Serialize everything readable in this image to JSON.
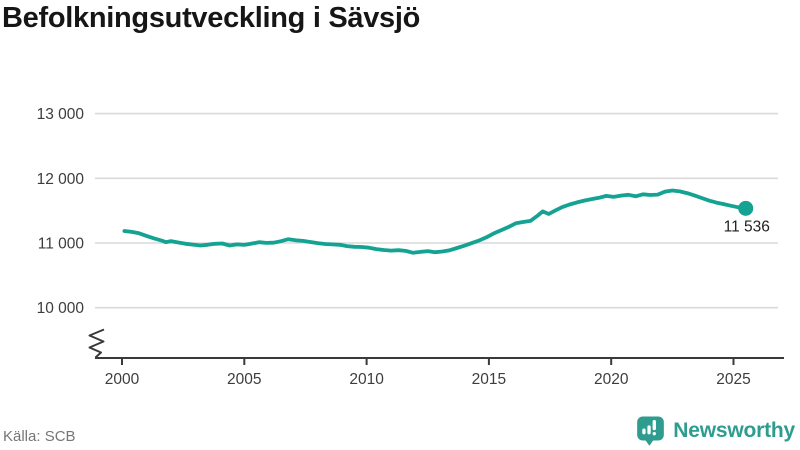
{
  "title": "Befolkningsutveckling i Sävsjö",
  "source": "Källa: SCB",
  "brand": {
    "name": "Newsworthy",
    "icon": "newsworthy-speech-bubble-bars-icon"
  },
  "colors": {
    "line": "#14a292",
    "logo": "#2e9c8e",
    "grid": "#d9d9d9",
    "axis": "#3a3a3a",
    "tick_text": "#3d3d3d",
    "title_text": "#161616",
    "muted_text": "#767676"
  },
  "annotation": {
    "label": "11 536",
    "year": 2025.5,
    "value": 11536
  },
  "chart_data": {
    "type": "line",
    "title": "Befolkningsutveckling i Sävsjö",
    "xlabel": "",
    "ylabel": "",
    "x_ticks": [
      2000,
      2005,
      2010,
      2015,
      2020,
      2025
    ],
    "y_ticks": [
      10000,
      11000,
      12000,
      13000
    ],
    "y_tick_labels": [
      "10 000",
      "11 000",
      "12 000",
      "13 000"
    ],
    "xlim": [
      1998.9,
      2027.1
    ],
    "ylim": [
      9200,
      13450
    ],
    "grid": "horizontal",
    "legend": false,
    "axis_break_bottom_left": true,
    "end_point_marker": true,
    "end_point_label": "11 536",
    "series": [
      {
        "name": "Befolkning",
        "points": [
          [
            2000.1,
            11185
          ],
          [
            2000.4,
            11172
          ],
          [
            2000.7,
            11150
          ],
          [
            2001.0,
            11110
          ],
          [
            2001.3,
            11072
          ],
          [
            2001.6,
            11040
          ],
          [
            2001.8,
            11012
          ],
          [
            2002.0,
            11030
          ],
          [
            2002.3,
            11008
          ],
          [
            2002.6,
            10988
          ],
          [
            2002.9,
            10975
          ],
          [
            2003.2,
            10962
          ],
          [
            2003.5,
            10972
          ],
          [
            2003.8,
            10988
          ],
          [
            2004.1,
            10992
          ],
          [
            2004.4,
            10962
          ],
          [
            2004.7,
            10978
          ],
          [
            2005.0,
            10970
          ],
          [
            2005.3,
            10990
          ],
          [
            2005.6,
            11012
          ],
          [
            2005.9,
            11002
          ],
          [
            2006.2,
            11005
          ],
          [
            2006.5,
            11028
          ],
          [
            2006.8,
            11058
          ],
          [
            2007.1,
            11042
          ],
          [
            2007.4,
            11032
          ],
          [
            2007.7,
            11015
          ],
          [
            2008.0,
            10998
          ],
          [
            2008.3,
            10985
          ],
          [
            2008.6,
            10978
          ],
          [
            2008.9,
            10972
          ],
          [
            2009.2,
            10952
          ],
          [
            2009.5,
            10942
          ],
          [
            2009.8,
            10938
          ],
          [
            2010.1,
            10928
          ],
          [
            2010.4,
            10905
          ],
          [
            2010.7,
            10892
          ],
          [
            2011.0,
            10882
          ],
          [
            2011.3,
            10888
          ],
          [
            2011.6,
            10878
          ],
          [
            2011.9,
            10848
          ],
          [
            2012.2,
            10862
          ],
          [
            2012.5,
            10875
          ],
          [
            2012.8,
            10858
          ],
          [
            2013.1,
            10868
          ],
          [
            2013.4,
            10888
          ],
          [
            2013.7,
            10922
          ],
          [
            2014.0,
            10958
          ],
          [
            2014.3,
            10998
          ],
          [
            2014.6,
            11038
          ],
          [
            2014.9,
            11088
          ],
          [
            2015.2,
            11148
          ],
          [
            2015.5,
            11198
          ],
          [
            2015.8,
            11248
          ],
          [
            2016.1,
            11305
          ],
          [
            2016.4,
            11325
          ],
          [
            2016.7,
            11342
          ],
          [
            2017.0,
            11425
          ],
          [
            2017.2,
            11488
          ],
          [
            2017.45,
            11448
          ],
          [
            2017.7,
            11500
          ],
          [
            2018.0,
            11555
          ],
          [
            2018.3,
            11595
          ],
          [
            2018.6,
            11628
          ],
          [
            2018.9,
            11655
          ],
          [
            2019.2,
            11678
          ],
          [
            2019.5,
            11698
          ],
          [
            2019.8,
            11728
          ],
          [
            2020.1,
            11712
          ],
          [
            2020.4,
            11732
          ],
          [
            2020.7,
            11745
          ],
          [
            2021.0,
            11722
          ],
          [
            2021.3,
            11752
          ],
          [
            2021.6,
            11742
          ],
          [
            2021.9,
            11748
          ],
          [
            2022.2,
            11795
          ],
          [
            2022.5,
            11812
          ],
          [
            2022.8,
            11798
          ],
          [
            2023.1,
            11772
          ],
          [
            2023.4,
            11735
          ],
          [
            2023.7,
            11695
          ],
          [
            2024.0,
            11655
          ],
          [
            2024.3,
            11625
          ],
          [
            2024.6,
            11602
          ],
          [
            2024.9,
            11575
          ],
          [
            2025.2,
            11552
          ],
          [
            2025.5,
            11536
          ]
        ]
      }
    ]
  }
}
